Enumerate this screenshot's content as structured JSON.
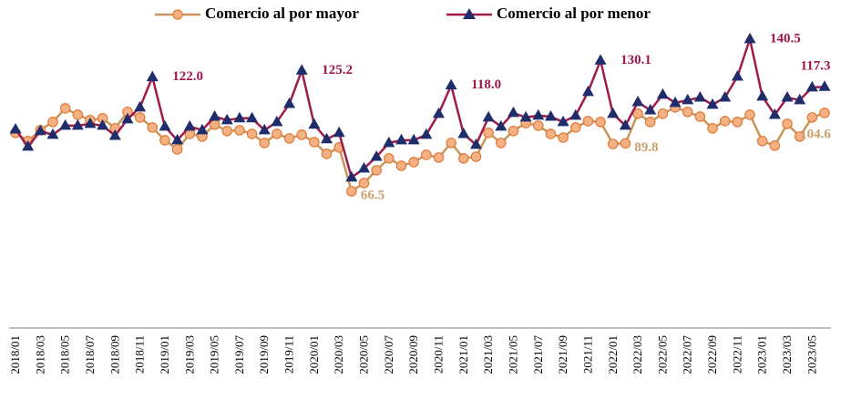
{
  "chart_data": {
    "type": "line",
    "categories": [
      "2018/01",
      null,
      "2018/03",
      null,
      "2018/05",
      null,
      "2018/07",
      null,
      "2018/09",
      null,
      "2018/11",
      null,
      "2019/01",
      null,
      "2019/03",
      null,
      "2019/05",
      null,
      "2019/07",
      null,
      "2019/09",
      null,
      "2019/11",
      null,
      "2020/01",
      null,
      "2020/03",
      null,
      "2020/05",
      null,
      "2020/07",
      null,
      "2020/09",
      null,
      "2020/11",
      null,
      "2021/01",
      null,
      "2021/03",
      null,
      "2021/05",
      null,
      "2021/07",
      null,
      "2021/09",
      null,
      "2021/11",
      null,
      "2022/01",
      null,
      "2022/03",
      null,
      "2022/05",
      null,
      "2022/07",
      null,
      "2022/09",
      null,
      "2022/11",
      null,
      "2023/01",
      null,
      "2023/03",
      null,
      "2023/05",
      null
    ],
    "series": [
      {
        "name": "Comercio al por mayor",
        "color": "#c8965a",
        "marker_color": "#f4b183",
        "marker_edge": "#e07b39",
        "label_color": "#c8a06e",
        "values": [
          94.9,
          90.9,
          96.2,
          100.2,
          106.8,
          103.7,
          101.1,
          102,
          97.1,
          105.1,
          102.4,
          97.5,
          91.3,
          86.9,
          94.4,
          93.1,
          98.9,
          95.8,
          96.2,
          94.4,
          90,
          94.4,
          92.2,
          94,
          90.4,
          84.7,
          87.8,
          66.5,
          70.5,
          76.7,
          82.5,
          78.9,
          80.7,
          84.2,
          82.9,
          90,
          82.5,
          83.3,
          94.9,
          90,
          95.8,
          99.7,
          98.4,
          94.4,
          92.6,
          97.5,
          100.6,
          100.2,
          89.5,
          89.8,
          104.2,
          100.2,
          104.2,
          107.3,
          105.1,
          102.8,
          97.1,
          100.6,
          100.2,
          103.7,
          90.9,
          88.7,
          99.3,
          93.1,
          102.4,
          104.6
        ],
        "value_labels": [
          null,
          null,
          null,
          null,
          null,
          null,
          null,
          null,
          null,
          null,
          null,
          null,
          null,
          null,
          null,
          null,
          null,
          null,
          null,
          null,
          null,
          null,
          null,
          null,
          null,
          null,
          null,
          "66.5",
          null,
          null,
          null,
          null,
          null,
          null,
          null,
          null,
          null,
          null,
          null,
          null,
          null,
          null,
          null,
          null,
          null,
          null,
          null,
          null,
          null,
          "89.8",
          null,
          null,
          null,
          null,
          null,
          null,
          null,
          null,
          null,
          null,
          null,
          null,
          null,
          null,
          null,
          "104.6"
        ]
      },
      {
        "name": "Comercio al por menor",
        "color": "#9e1b4c",
        "marker_color": "#1f2d6b",
        "marker_edge": "#1f2d6b",
        "label_color": "#a0154a",
        "values": [
          96.6,
          88.2,
          95.8,
          94,
          98.4,
          98.4,
          99.3,
          98.4,
          93.5,
          101.5,
          107.3,
          122.0,
          98,
          91.3,
          98,
          96.2,
          102.8,
          101.1,
          102,
          102,
          96.2,
          100.2,
          109,
          125.2,
          98.9,
          91.8,
          94.9,
          73.2,
          77.6,
          83.3,
          90,
          91.3,
          91.3,
          94,
          104.2,
          118.0,
          94.4,
          89.1,
          102.4,
          98,
          104.6,
          102.4,
          103.3,
          102.8,
          100.2,
          103.3,
          114.8,
          130.1,
          104.2,
          98.4,
          109.9,
          105.9,
          113.5,
          109.5,
          110.8,
          112.1,
          108.6,
          112.1,
          122.3,
          140.5,
          112.6,
          103.7,
          112.1,
          110.8,
          117,
          117.3
        ],
        "value_labels": [
          null,
          null,
          null,
          null,
          null,
          null,
          null,
          null,
          null,
          null,
          null,
          "122.0",
          null,
          null,
          null,
          null,
          null,
          null,
          null,
          null,
          null,
          null,
          null,
          "125.2",
          null,
          null,
          null,
          null,
          null,
          null,
          null,
          null,
          null,
          null,
          null,
          "118.0",
          null,
          null,
          null,
          null,
          null,
          null,
          null,
          null,
          null,
          null,
          null,
          "130.1",
          null,
          null,
          null,
          null,
          null,
          null,
          null,
          null,
          null,
          null,
          null,
          "140.5",
          null,
          null,
          null,
          null,
          null,
          "117.3"
        ]
      }
    ],
    "ylim": [
      0,
      160
    ],
    "grid": false
  }
}
